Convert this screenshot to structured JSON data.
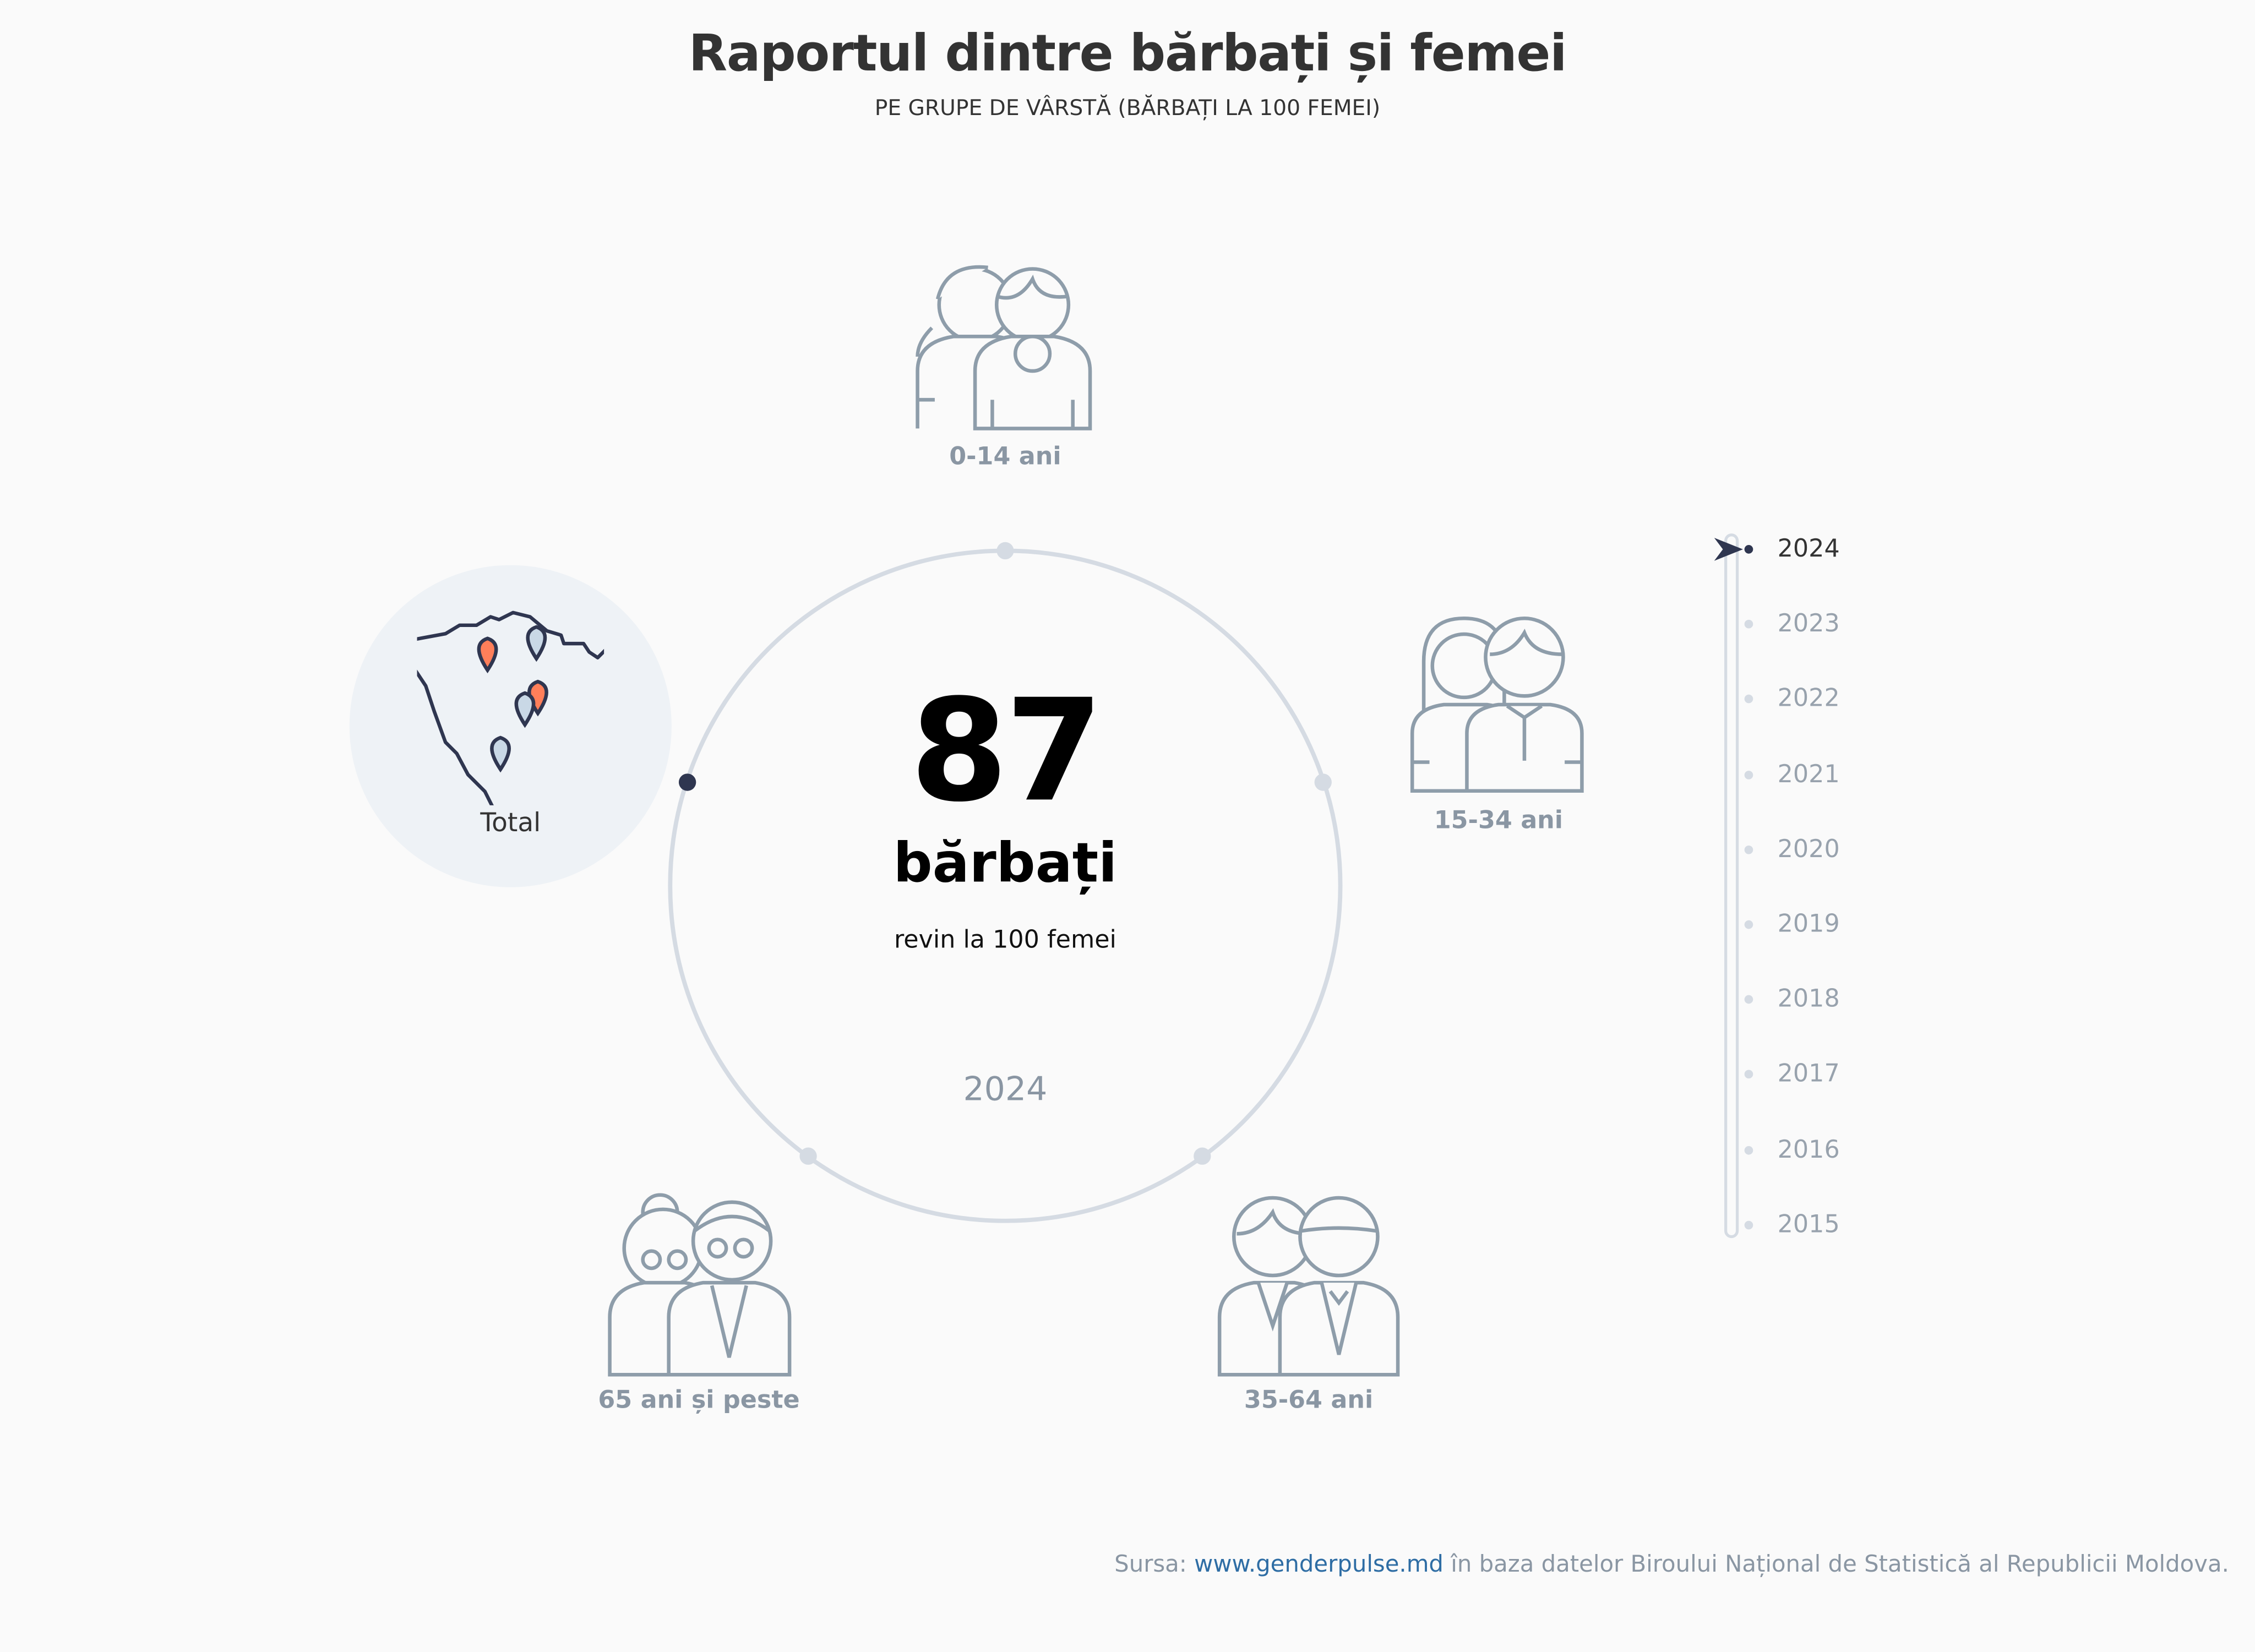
{
  "header": {
    "title": "Raportul dintre bărbați și femei",
    "subtitle": "PE GRUPE DE VÂRSTĂ (BĂRBAȚI LA 100 FEMEI)"
  },
  "center": {
    "value": "87",
    "unit": "bărbați",
    "description": "revin la 100 femei",
    "year": "2024"
  },
  "groups": [
    {
      "label": "0-14 ani",
      "icon": "children-pair-icon"
    },
    {
      "label": "15-34 ani",
      "icon": "young-adults-pair-icon"
    },
    {
      "label": "35-64 ani",
      "icon": "adults-pair-icon"
    },
    {
      "label": "65 ani și peste",
      "icon": "elderly-pair-icon"
    },
    {
      "label": "Total",
      "icon": "moldova-map-icon",
      "active": true
    }
  ],
  "timeline": {
    "selected": "2024",
    "years": [
      "2024",
      "2023",
      "2022",
      "2021",
      "2020",
      "2019",
      "2018",
      "2017",
      "2016",
      "2015"
    ]
  },
  "footer": {
    "prefix": "Sursa: ",
    "link": "www.genderpulse.md",
    "suffix": " în baza datelor Biroului Național de Statistică al Republicii Moldova."
  },
  "colors": {
    "accent": "#2f3650",
    "ring": "#d5dbe3",
    "icon": "#8e9daa",
    "pin_orange": "#ff7f5a",
    "pin_blue": "#c9d8e6",
    "link": "#2e6da4"
  }
}
